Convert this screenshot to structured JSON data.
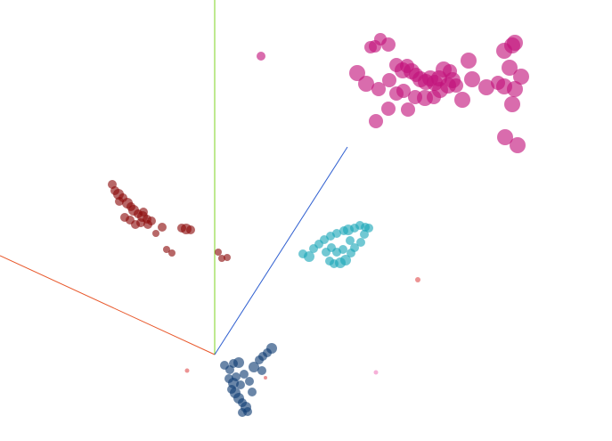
{
  "chart_data": {
    "type": "scatter",
    "projection": "3d",
    "grid": false,
    "legend": "none",
    "title": "",
    "axes": [
      {
        "name": "x",
        "color": "#e8572a"
      },
      {
        "name": "y",
        "color": "#7ed321"
      },
      {
        "name": "z",
        "color": "#2f5fd0"
      }
    ],
    "series": [
      {
        "color": "#8b0a0a",
        "points": [
          {
            "x": 126,
            "y": 207,
            "s": 5
          },
          {
            "x": 129,
            "y": 214,
            "s": 5
          },
          {
            "x": 133,
            "y": 218,
            "s": 6
          },
          {
            "x": 138,
            "y": 222,
            "s": 5
          },
          {
            "x": 143,
            "y": 228,
            "s": 6
          },
          {
            "x": 147,
            "y": 232,
            "s": 5
          },
          {
            "x": 150,
            "y": 236,
            "s": 6
          },
          {
            "x": 155,
            "y": 240,
            "s": 5
          },
          {
            "x": 160,
            "y": 243,
            "s": 6
          },
          {
            "x": 165,
            "y": 246,
            "s": 5
          },
          {
            "x": 140,
            "y": 244,
            "s": 5
          },
          {
            "x": 146,
            "y": 247,
            "s": 5
          },
          {
            "x": 152,
            "y": 252,
            "s": 5
          },
          {
            "x": 158,
            "y": 250,
            "s": 5
          },
          {
            "x": 166,
            "y": 252,
            "s": 5
          },
          {
            "x": 170,
            "y": 248,
            "s": 5
          },
          {
            "x": 175,
            "y": 262,
            "s": 4
          },
          {
            "x": 182,
            "y": 255,
            "s": 5
          },
          {
            "x": 187,
            "y": 280,
            "s": 4
          },
          {
            "x": 193,
            "y": 284,
            "s": 4
          },
          {
            "x": 204,
            "y": 256,
            "s": 5
          },
          {
            "x": 209,
            "y": 257,
            "s": 6
          },
          {
            "x": 214,
            "y": 258,
            "s": 5
          },
          {
            "x": 245,
            "y": 283,
            "s": 4
          },
          {
            "x": 249,
            "y": 290,
            "s": 4
          },
          {
            "x": 255,
            "y": 289,
            "s": 4
          },
          {
            "x": 134,
            "y": 226,
            "s": 5
          },
          {
            "x": 161,
            "y": 238,
            "s": 5
          }
        ]
      },
      {
        "color": "#c2127a",
        "points": [
          {
            "x": 293,
            "y": 63,
            "s": 5
          },
          {
            "x": 401,
            "y": 82,
            "s": 9
          },
          {
            "x": 411,
            "y": 94,
            "s": 9
          },
          {
            "x": 416,
            "y": 53,
            "s": 7
          },
          {
            "x": 421,
            "y": 52,
            "s": 7
          },
          {
            "x": 427,
            "y": 44,
            "s": 7
          },
          {
            "x": 436,
            "y": 50,
            "s": 8
          },
          {
            "x": 422,
            "y": 136,
            "s": 8
          },
          {
            "x": 436,
            "y": 122,
            "s": 8
          },
          {
            "x": 425,
            "y": 100,
            "s": 8
          },
          {
            "x": 437,
            "y": 90,
            "s": 8
          },
          {
            "x": 445,
            "y": 73,
            "s": 8
          },
          {
            "x": 452,
            "y": 79,
            "s": 9
          },
          {
            "x": 457,
            "y": 74,
            "s": 8
          },
          {
            "x": 462,
            "y": 80,
            "s": 9
          },
          {
            "x": 467,
            "y": 84,
            "s": 8
          },
          {
            "x": 472,
            "y": 89,
            "s": 9
          },
          {
            "x": 478,
            "y": 92,
            "s": 9
          },
          {
            "x": 483,
            "y": 88,
            "s": 9
          },
          {
            "x": 488,
            "y": 93,
            "s": 9
          },
          {
            "x": 493,
            "y": 88,
            "s": 9
          },
          {
            "x": 498,
            "y": 78,
            "s": 9
          },
          {
            "x": 503,
            "y": 96,
            "s": 9
          },
          {
            "x": 508,
            "y": 90,
            "s": 9
          },
          {
            "x": 512,
            "y": 96,
            "s": 8
          },
          {
            "x": 519,
            "y": 112,
            "s": 9
          },
          {
            "x": 526,
            "y": 68,
            "s": 9
          },
          {
            "x": 530,
            "y": 89,
            "s": 9
          },
          {
            "x": 453,
            "y": 102,
            "s": 8
          },
          {
            "x": 458,
            "y": 123,
            "s": 8
          },
          {
            "x": 466,
            "y": 109,
            "s": 8
          },
          {
            "x": 477,
            "y": 110,
            "s": 9
          },
          {
            "x": 487,
            "y": 109,
            "s": 8
          },
          {
            "x": 546,
            "y": 98,
            "s": 9
          },
          {
            "x": 559,
            "y": 93,
            "s": 8
          },
          {
            "x": 566,
            "y": 97,
            "s": 9
          },
          {
            "x": 572,
            "y": 76,
            "s": 9
          },
          {
            "x": 566,
            "y": 57,
            "s": 9
          },
          {
            "x": 575,
            "y": 51,
            "s": 9
          },
          {
            "x": 578,
            "y": 48,
            "s": 9
          },
          {
            "x": 585,
            "y": 86,
            "s": 9
          },
          {
            "x": 578,
            "y": 100,
            "s": 9
          },
          {
            "x": 575,
            "y": 117,
            "s": 9
          },
          {
            "x": 567,
            "y": 154,
            "s": 9
          },
          {
            "x": 581,
            "y": 163,
            "s": 9
          },
          {
            "x": 445,
            "y": 105,
            "s": 8
          },
          {
            "x": 494,
            "y": 101,
            "s": 9
          },
          {
            "x": 505,
            "y": 80,
            "s": 8
          }
        ]
      },
      {
        "color": "#1aa6b8",
        "points": [
          {
            "x": 340,
            "y": 285,
            "s": 5
          },
          {
            "x": 347,
            "y": 288,
            "s": 6
          },
          {
            "x": 352,
            "y": 279,
            "s": 5
          },
          {
            "x": 358,
            "y": 274,
            "s": 5
          },
          {
            "x": 364,
            "y": 269,
            "s": 5
          },
          {
            "x": 371,
            "y": 265,
            "s": 5
          },
          {
            "x": 378,
            "y": 262,
            "s": 5
          },
          {
            "x": 386,
            "y": 259,
            "s": 5
          },
          {
            "x": 391,
            "y": 258,
            "s": 6
          },
          {
            "x": 398,
            "y": 256,
            "s": 5
          },
          {
            "x": 404,
            "y": 253,
            "s": 5
          },
          {
            "x": 410,
            "y": 255,
            "s": 5
          },
          {
            "x": 414,
            "y": 256,
            "s": 5
          },
          {
            "x": 409,
            "y": 263,
            "s": 5
          },
          {
            "x": 405,
            "y": 272,
            "s": 5
          },
          {
            "x": 398,
            "y": 278,
            "s": 5
          },
          {
            "x": 394,
            "y": 284,
            "s": 5
          },
          {
            "x": 388,
            "y": 292,
            "s": 6
          },
          {
            "x": 382,
            "y": 295,
            "s": 6
          },
          {
            "x": 375,
            "y": 296,
            "s": 5
          },
          {
            "x": 370,
            "y": 293,
            "s": 5
          },
          {
            "x": 378,
            "y": 283,
            "s": 5
          },
          {
            "x": 385,
            "y": 280,
            "s": 5
          },
          {
            "x": 372,
            "y": 278,
            "s": 5
          },
          {
            "x": 393,
            "y": 270,
            "s": 5
          },
          {
            "x": 366,
            "y": 283,
            "s": 5
          }
        ]
      },
      {
        "color": "#0e3c73",
        "points": [
          {
            "x": 252,
            "y": 410,
            "s": 5
          },
          {
            "x": 258,
            "y": 415,
            "s": 5
          },
          {
            "x": 262,
            "y": 408,
            "s": 5
          },
          {
            "x": 268,
            "y": 407,
            "s": 6
          },
          {
            "x": 274,
            "y": 420,
            "s": 5
          },
          {
            "x": 285,
            "y": 412,
            "s": 6
          },
          {
            "x": 291,
            "y": 404,
            "s": 5
          },
          {
            "x": 295,
            "y": 400,
            "s": 5
          },
          {
            "x": 300,
            "y": 396,
            "s": 5
          },
          {
            "x": 305,
            "y": 391,
            "s": 6
          },
          {
            "x": 294,
            "y": 416,
            "s": 5
          },
          {
            "x": 257,
            "y": 425,
            "s": 5
          },
          {
            "x": 262,
            "y": 430,
            "s": 6
          },
          {
            "x": 260,
            "y": 437,
            "s": 5
          },
          {
            "x": 264,
            "y": 441,
            "s": 6
          },
          {
            "x": 268,
            "y": 447,
            "s": 6
          },
          {
            "x": 272,
            "y": 452,
            "s": 5
          },
          {
            "x": 276,
            "y": 457,
            "s": 6
          },
          {
            "x": 278,
            "y": 462,
            "s": 5
          },
          {
            "x": 272,
            "y": 463,
            "s": 5
          },
          {
            "x": 283,
            "y": 440,
            "s": 5
          },
          {
            "x": 270,
            "y": 432,
            "s": 5
          },
          {
            "x": 265,
            "y": 423,
            "s": 5
          },
          {
            "x": 280,
            "y": 428,
            "s": 5
          }
        ]
      },
      {
        "color": "#e05050",
        "points": [
          {
            "x": 469,
            "y": 314,
            "s": 3
          },
          {
            "x": 210,
            "y": 416,
            "s": 2.5
          },
          {
            "x": 298,
            "y": 424,
            "s": 2
          }
        ]
      },
      {
        "color": "#f080c0",
        "points": [
          {
            "x": 422,
            "y": 418,
            "s": 2.5
          }
        ]
      }
    ]
  }
}
